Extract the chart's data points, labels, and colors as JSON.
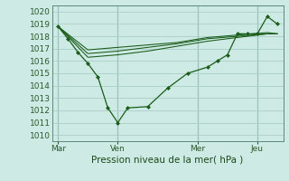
{
  "xlabel": "Pression niveau de la mer( hPa )",
  "ylim": [
    1009.5,
    1020.5
  ],
  "yticks": [
    1010,
    1011,
    1012,
    1013,
    1014,
    1015,
    1016,
    1017,
    1018,
    1019,
    1020
  ],
  "xtick_labels": [
    "Mar",
    "Ven",
    "Mer",
    "Jeu"
  ],
  "xtick_pos": [
    0,
    3,
    7,
    10
  ],
  "xlim": [
    -0.3,
    11.3
  ],
  "background_color": "#ceeae4",
  "grid_color": "#aacfc8",
  "line_color": "#1a5c1a",
  "vline_color": "#5a8a7a",
  "main_line": {
    "x": [
      0,
      0.5,
      1.0,
      1.5,
      2.0,
      2.5,
      3.0,
      3.5,
      4.5,
      5.5,
      6.5,
      7.5,
      8.0,
      8.5,
      9.0,
      9.5,
      10.0,
      10.5,
      11.0
    ],
    "y": [
      1018.8,
      1017.8,
      1016.7,
      1015.8,
      1014.7,
      1012.2,
      1011.0,
      1012.2,
      1012.3,
      1013.8,
      1015.0,
      1015.5,
      1016.0,
      1016.5,
      1018.2,
      1018.2,
      1018.2,
      1019.6,
      1019.0
    ]
  },
  "flat_line1": {
    "x": [
      0,
      1.5,
      3.0,
      4.5,
      6.0,
      7.5,
      9.0,
      10.5,
      11.0
    ],
    "y": [
      1018.8,
      1016.6,
      1016.8,
      1017.1,
      1017.4,
      1017.8,
      1018.0,
      1018.2,
      1018.2
    ]
  },
  "flat_line2": {
    "x": [
      0,
      1.5,
      3.0,
      4.5,
      6.0,
      7.5,
      9.0,
      10.5,
      11.0
    ],
    "y": [
      1018.8,
      1016.9,
      1017.1,
      1017.3,
      1017.5,
      1017.9,
      1018.1,
      1018.3,
      1018.2
    ]
  },
  "flat_line3": {
    "x": [
      0,
      1.5,
      3.0,
      4.5,
      6.0,
      7.5,
      9.0,
      10.5,
      11.0
    ],
    "y": [
      1018.8,
      1016.3,
      1016.5,
      1016.8,
      1017.2,
      1017.6,
      1017.9,
      1018.2,
      1018.2
    ]
  },
  "vlines_x": [
    0,
    3,
    7,
    10
  ],
  "marker": "D",
  "markersize": 2.5,
  "linewidth": 0.9
}
